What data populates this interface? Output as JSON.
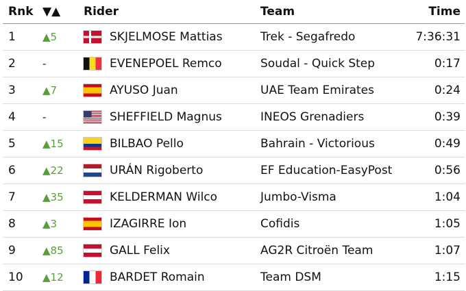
{
  "table": {
    "header": [
      "Rnk",
      "▼▲",
      "Rider",
      "Team",
      "Time"
    ],
    "rows": [
      [
        "1",
        "▲5",
        "SKJELMOSE Mattias",
        "Trek - Segafredo",
        "7:36:31"
      ],
      [
        "2",
        "-",
        "EVENEPOEL Remco",
        "Soudal - Quick Step",
        "0:17"
      ],
      [
        "3",
        "▲7",
        "AYUSO Juan",
        "UAE Team Emirates",
        "0:24"
      ],
      [
        "4",
        "-",
        "SHEFFIELD Magnus",
        "INEOS Grenadiers",
        "0:39"
      ],
      [
        "5",
        "▲15",
        "BILBAO Pello",
        "Bahrain - Victorious",
        "0:49"
      ],
      [
        "6",
        "▲22",
        "URÁN Rigoberto",
        "EF Education-EasyPost",
        "0:56"
      ],
      [
        "7",
        "▲35",
        "KELDERMAN Wilco",
        "Jumbo-Visma",
        "1:04"
      ],
      [
        "8",
        "▲3",
        "IZAGIRRE Ion",
        "Cofidis",
        "1:05"
      ],
      [
        "9",
        "▲85",
        "GALL Felix",
        "AG2R Citroën Team",
        "1:07"
      ],
      [
        "10",
        "▲12",
        "BARDET Romain",
        "Team DSM",
        "1:15"
      ]
    ]
  }
}
